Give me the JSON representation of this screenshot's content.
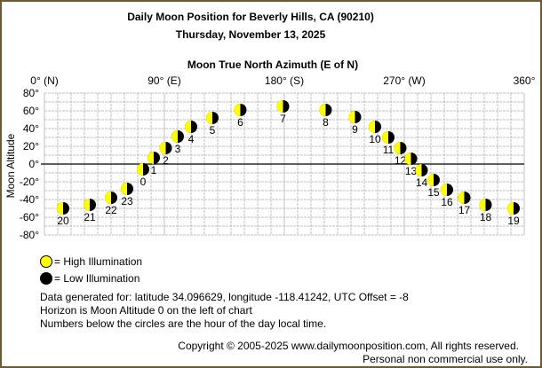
{
  "header": {
    "title": "Daily Moon Position for Beverly Hills, CA (90210)",
    "date": "Thursday, November 13, 2025"
  },
  "chart_data": {
    "type": "scatter",
    "title": "Moon True North Azimuth (E of N)",
    "ylabel": "Moon Altitude",
    "xlim": [
      0,
      360
    ],
    "ylim": [
      -80,
      80
    ],
    "grid": true,
    "x_ticks": [
      "0° (N)",
      "90° (E)",
      "180° (S)",
      "270° (W)",
      "360°"
    ],
    "y_ticks": [
      "80°",
      "60°",
      "40°",
      "20°",
      "0°",
      "-20°",
      "-40°",
      "-60°",
      "-80°"
    ],
    "points": [
      {
        "hour": "20",
        "az": 14,
        "alt": -50
      },
      {
        "hour": "21",
        "az": 34,
        "alt": -46
      },
      {
        "hour": "22",
        "az": 50,
        "alt": -38
      },
      {
        "hour": "23",
        "az": 62,
        "alt": -28
      },
      {
        "hour": "0",
        "az": 74,
        "alt": -6
      },
      {
        "hour": "1",
        "az": 82,
        "alt": 7
      },
      {
        "hour": "2",
        "az": 91,
        "alt": 18
      },
      {
        "hour": "3",
        "az": 100,
        "alt": 31
      },
      {
        "hour": "4",
        "az": 110,
        "alt": 42
      },
      {
        "hour": "5",
        "az": 126,
        "alt": 52
      },
      {
        "hour": "6",
        "az": 147,
        "alt": 61
      },
      {
        "hour": "7",
        "az": 179,
        "alt": 65
      },
      {
        "hour": "8",
        "az": 211,
        "alt": 61
      },
      {
        "hour": "9",
        "az": 233,
        "alt": 53
      },
      {
        "hour": "10",
        "az": 248,
        "alt": 42
      },
      {
        "hour": "11",
        "az": 258,
        "alt": 30
      },
      {
        "hour": "12",
        "az": 267,
        "alt": 18
      },
      {
        "hour": "13",
        "az": 275,
        "alt": 6
      },
      {
        "hour": "14",
        "az": 283,
        "alt": -7
      },
      {
        "hour": "15",
        "az": 292,
        "alt": -18
      },
      {
        "hour": "16",
        "az": 302,
        "alt": -29
      },
      {
        "hour": "17",
        "az": 315,
        "alt": -38
      },
      {
        "hour": "18",
        "az": 331,
        "alt": -46
      },
      {
        "hour": "19",
        "az": 352,
        "alt": -50
      }
    ],
    "colors": {
      "high": "#ffff00",
      "low": "#000000",
      "grid": "#c0c0c0"
    }
  },
  "legend": {
    "high": "= High Illumination",
    "low": "= Low Illumination"
  },
  "notes": [
    "Data generated for: latitude 34.096629, longitude -118.41242, UTC Offset = -8",
    "Horizon is Moon Altitude 0 on the left of chart",
    "Numbers below the circles are the hour of the day local time."
  ],
  "footer": {
    "copyright": "Copyright © 2005-2025 www.dailymoonposition.com, All rights reserved.",
    "usage": "Personal non commercial use only."
  }
}
